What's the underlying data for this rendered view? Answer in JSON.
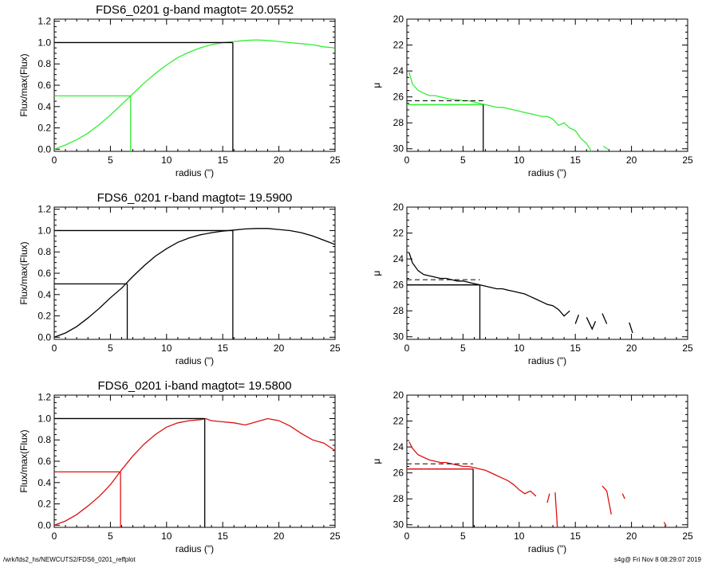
{
  "footer": {
    "left": "/wrk/fds2_hs/NEWCUTS2/FDS6_0201_reffplot",
    "right": "s4g@  Fri Nov  8 08:29:07 2019"
  },
  "chart_data": [
    {
      "type": "line",
      "title": "FDS6_0201 g-band  magtot=     20.0552",
      "xlabel": "radius (\")",
      "ylabel": "Flux/max(Flux)",
      "xlim": [
        0,
        25
      ],
      "ylim": [
        -0.02,
        1.22
      ],
      "xticks": [
        "0",
        "5",
        "10",
        "15",
        "20",
        "25"
      ],
      "yticks": [
        "0.0",
        "0.2",
        "0.4",
        "0.6",
        "0.8",
        "1.0",
        "1.2"
      ],
      "color": "#33ee33",
      "curve": [
        [
          0,
          0
        ],
        [
          1,
          0.04
        ],
        [
          2,
          0.09
        ],
        [
          3,
          0.15
        ],
        [
          4,
          0.23
        ],
        [
          5,
          0.32
        ],
        [
          6,
          0.42
        ],
        [
          7,
          0.52
        ],
        [
          8,
          0.62
        ],
        [
          9,
          0.71
        ],
        [
          10,
          0.79
        ],
        [
          11,
          0.86
        ],
        [
          12,
          0.91
        ],
        [
          13,
          0.95
        ],
        [
          14,
          0.98
        ],
        [
          15,
          1.0
        ],
        [
          16,
          1.01
        ],
        [
          17,
          1.02
        ],
        [
          18,
          1.025
        ],
        [
          19,
          1.02
        ],
        [
          20,
          1.01
        ],
        [
          21,
          1.0
        ],
        [
          22,
          0.99
        ],
        [
          23,
          0.98
        ],
        [
          24,
          0.96
        ],
        [
          25,
          0.95
        ]
      ],
      "half_light_radius": 6.8,
      "half_light_flux": 0.5,
      "total_radius": 15.9,
      "total_flux": 1.0
    },
    {
      "type": "line",
      "title": "",
      "xlabel": "radius (\")",
      "ylabel": "μ",
      "xlim": [
        0,
        25
      ],
      "ylim": [
        30.2,
        20
      ],
      "xticks": [
        "0",
        "5",
        "10",
        "15",
        "20",
        "25"
      ],
      "yticks": [
        "20",
        "22",
        "24",
        "26",
        "28",
        "30"
      ],
      "color": "#33ee33",
      "profile": [
        [
          0.2,
          24.1
        ],
        [
          0.5,
          25.0
        ],
        [
          1,
          25.5
        ],
        [
          1.5,
          25.7
        ],
        [
          2,
          25.9
        ],
        [
          2.5,
          25.9
        ],
        [
          3,
          26.0
        ],
        [
          3.5,
          26.1
        ],
        [
          4,
          26.2
        ],
        [
          4.5,
          26.2
        ],
        [
          5,
          26.3
        ],
        [
          5.5,
          26.3
        ],
        [
          6,
          26.4
        ],
        [
          6.5,
          26.5
        ],
        [
          7,
          26.6
        ],
        [
          7.5,
          26.7
        ],
        [
          8,
          26.8
        ],
        [
          8.5,
          26.8
        ],
        [
          9,
          26.9
        ],
        [
          9.5,
          27.0
        ],
        [
          10,
          27.1
        ],
        [
          10.5,
          27.2
        ],
        [
          11,
          27.3
        ],
        [
          11.5,
          27.4
        ],
        [
          12,
          27.5
        ],
        [
          12.5,
          27.5
        ],
        [
          13,
          27.7
        ],
        [
          13.5,
          28.2
        ],
        [
          14,
          28.0
        ],
        [
          14.5,
          28.4
        ],
        [
          15,
          28.6
        ],
        [
          15.5,
          29.2
        ],
        [
          16,
          29.6
        ],
        [
          16.5,
          30.3
        ]
      ],
      "profile_segments": [
        [
          [
            17.5,
            29.8
          ],
          [
            18,
            30.1
          ]
        ]
      ],
      "mu_level": 26.6,
      "mu_radius": 6.8,
      "dashed_level": 26.3
    },
    {
      "type": "line",
      "title": "FDS6_0201 r-band  magtot=     19.5900",
      "xlabel": "radius (\")",
      "ylabel": "Flux/max(Flux)",
      "xlim": [
        0,
        25
      ],
      "ylim": [
        -0.02,
        1.22
      ],
      "xticks": [
        "0",
        "5",
        "10",
        "15",
        "20",
        "25"
      ],
      "yticks": [
        "0.0",
        "0.2",
        "0.4",
        "0.6",
        "0.8",
        "1.0",
        "1.2"
      ],
      "color": "#000000",
      "curve": [
        [
          0,
          0
        ],
        [
          1,
          0.04
        ],
        [
          2,
          0.1
        ],
        [
          3,
          0.18
        ],
        [
          4,
          0.27
        ],
        [
          5,
          0.37
        ],
        [
          6,
          0.46
        ],
        [
          7,
          0.57
        ],
        [
          8,
          0.67
        ],
        [
          9,
          0.76
        ],
        [
          10,
          0.83
        ],
        [
          11,
          0.89
        ],
        [
          12,
          0.93
        ],
        [
          13,
          0.96
        ],
        [
          14,
          0.98
        ],
        [
          15,
          0.995
        ],
        [
          16,
          1.005
        ],
        [
          17,
          1.015
        ],
        [
          18,
          1.02
        ],
        [
          19,
          1.02
        ],
        [
          20,
          1.01
        ],
        [
          21,
          1.0
        ],
        [
          22,
          0.98
        ],
        [
          23,
          0.95
        ],
        [
          24,
          0.91
        ],
        [
          25,
          0.87
        ]
      ],
      "half_light_radius": 6.5,
      "half_light_flux": 0.5,
      "total_radius": 15.9,
      "total_flux": 1.0
    },
    {
      "type": "line",
      "title": "",
      "xlabel": "radius (\")",
      "ylabel": "μ",
      "xlim": [
        0,
        25
      ],
      "ylim": [
        30.2,
        20
      ],
      "xticks": [
        "0",
        "5",
        "10",
        "15",
        "20",
        "25"
      ],
      "yticks": [
        "20",
        "22",
        "24",
        "26",
        "28",
        "30"
      ],
      "color": "#000000",
      "profile": [
        [
          0.2,
          23.5
        ],
        [
          0.5,
          24.3
        ],
        [
          1,
          24.9
        ],
        [
          1.5,
          25.2
        ],
        [
          2,
          25.3
        ],
        [
          2.5,
          25.4
        ],
        [
          3,
          25.5
        ],
        [
          3.5,
          25.5
        ],
        [
          4,
          25.6
        ],
        [
          4.5,
          25.7
        ],
        [
          5,
          25.7
        ],
        [
          5.5,
          25.8
        ],
        [
          6,
          25.9
        ],
        [
          6.5,
          26.0
        ],
        [
          7,
          26.1
        ],
        [
          7.5,
          26.2
        ],
        [
          8,
          26.3
        ],
        [
          8.5,
          26.3
        ],
        [
          9,
          26.4
        ],
        [
          9.5,
          26.5
        ],
        [
          10,
          26.6
        ],
        [
          10.5,
          26.7
        ],
        [
          11,
          26.9
        ],
        [
          11.5,
          27.1
        ],
        [
          12,
          27.3
        ],
        [
          12.5,
          27.5
        ],
        [
          13,
          27.6
        ],
        [
          13.5,
          27.9
        ],
        [
          14,
          28.4
        ],
        [
          14.5,
          28.0
        ]
      ],
      "profile_segments": [
        [
          [
            15,
            29.0
          ],
          [
            15.3,
            28.3
          ]
        ],
        [
          [
            16,
            28.5
          ],
          [
            16.5,
            29.4
          ],
          [
            16.8,
            28.8
          ]
        ],
        [
          [
            17.4,
            28.2
          ],
          [
            17.8,
            29.0
          ]
        ],
        [
          [
            19.8,
            28.9
          ],
          [
            20.1,
            29.7
          ]
        ]
      ],
      "mu_level": 26.0,
      "mu_radius": 6.5,
      "dashed_level": 25.6
    },
    {
      "type": "line",
      "title": "FDS6_0201 i-band  magtot=     19.5800",
      "xlabel": "radius (\")",
      "ylabel": "Flux/max(Flux)",
      "xlim": [
        0,
        25
      ],
      "ylim": [
        -0.02,
        1.22
      ],
      "xticks": [
        "0",
        "5",
        "10",
        "15",
        "20",
        "25"
      ],
      "yticks": [
        "0.0",
        "0.2",
        "0.4",
        "0.6",
        "0.8",
        "1.0",
        "1.2"
      ],
      "color": "#dd1111",
      "curve": [
        [
          0,
          0
        ],
        [
          1,
          0.04
        ],
        [
          2,
          0.1
        ],
        [
          3,
          0.18
        ],
        [
          4,
          0.27
        ],
        [
          5,
          0.38
        ],
        [
          6,
          0.52
        ],
        [
          7,
          0.65
        ],
        [
          8,
          0.76
        ],
        [
          9,
          0.85
        ],
        [
          10,
          0.92
        ],
        [
          11,
          0.96
        ],
        [
          12,
          0.98
        ],
        [
          13,
          0.99
        ],
        [
          13.5,
          1.0
        ],
        [
          14,
          0.98
        ],
        [
          15,
          0.97
        ],
        [
          16,
          0.96
        ],
        [
          17,
          0.94
        ],
        [
          18,
          0.97
        ],
        [
          19,
          1.0
        ],
        [
          20,
          0.98
        ],
        [
          21,
          0.93
        ],
        [
          22,
          0.86
        ],
        [
          23,
          0.8
        ],
        [
          24,
          0.77
        ],
        [
          25,
          0.7
        ]
      ],
      "half_light_radius": 5.9,
      "half_light_flux": 0.5,
      "total_radius": 13.4,
      "total_flux": 1.0
    },
    {
      "type": "line",
      "title": "",
      "xlabel": "radius (\")",
      "ylabel": "μ",
      "xlim": [
        0,
        25
      ],
      "ylim": [
        30.2,
        20
      ],
      "xticks": [
        "0",
        "5",
        "10",
        "15",
        "20",
        "25"
      ],
      "yticks": [
        "20",
        "22",
        "24",
        "26",
        "28",
        "30"
      ],
      "color": "#dd1111",
      "profile": [
        [
          0.2,
          23.6
        ],
        [
          0.5,
          24.1
        ],
        [
          1,
          24.6
        ],
        [
          1.5,
          24.8
        ],
        [
          2,
          25.0
        ],
        [
          2.5,
          25.1
        ],
        [
          3,
          25.2
        ],
        [
          3.5,
          25.2
        ],
        [
          4,
          25.3
        ],
        [
          4.5,
          25.4
        ],
        [
          5,
          25.5
        ],
        [
          5.5,
          25.5
        ],
        [
          6,
          25.6
        ],
        [
          6.5,
          25.7
        ],
        [
          7,
          25.8
        ],
        [
          7.5,
          26.0
        ],
        [
          8,
          26.2
        ],
        [
          8.5,
          26.4
        ],
        [
          9,
          26.6
        ],
        [
          9.5,
          26.9
        ],
        [
          10,
          27.3
        ],
        [
          10.5,
          27.6
        ],
        [
          11,
          27.4
        ],
        [
          11.5,
          27.8
        ]
      ],
      "profile_segments": [
        [
          [
            12.5,
            28.3
          ],
          [
            12.7,
            27.6
          ]
        ],
        [
          [
            13.2,
            27.5
          ],
          [
            13.4,
            30.2
          ]
        ],
        [
          [
            17.4,
            27.0
          ],
          [
            17.8,
            27.4
          ],
          [
            18.2,
            29.2
          ]
        ],
        [
          [
            19.2,
            27.6
          ],
          [
            19.4,
            28.0
          ]
        ],
        [
          [
            22.9,
            29.8
          ],
          [
            23.1,
            30.1
          ]
        ]
      ],
      "mu_level": 25.7,
      "mu_radius": 5.9,
      "dashed_level": 25.3
    }
  ]
}
